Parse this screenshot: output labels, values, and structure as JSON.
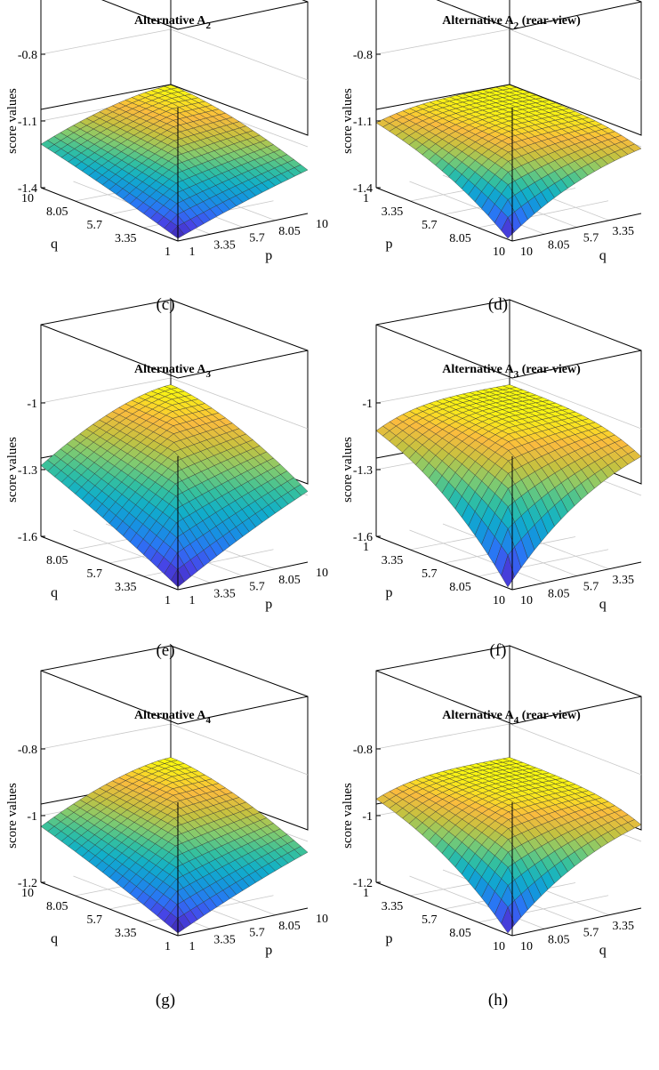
{
  "figure": {
    "captions": [
      "(c)",
      "(d)",
      "(e)",
      "(f)",
      "(g)",
      "(h)"
    ]
  },
  "chart_data": [
    {
      "type": "surface",
      "title": "Alternative A",
      "title_subscript": "2",
      "title_suffix": "",
      "caption": "(c)",
      "view": "front",
      "xlabel": "p",
      "ylabel": "q",
      "zlabel": "score values",
      "x_ticks": [
        "1",
        "3.35",
        "5.7",
        "8.05",
        "10"
      ],
      "y_ticks": [
        "1",
        "3.35",
        "5.7",
        "8.05",
        "10"
      ],
      "z_ticks": [
        "-0.8",
        "-1.1",
        "-1.4"
      ],
      "x_range": [
        1,
        10
      ],
      "y_range": [
        1,
        10
      ],
      "zlim": [
        -1.4,
        -0.8
      ],
      "surface": {
        "corner_max": -1.05,
        "center_min": -1.4
      },
      "colormap": "parula",
      "grid": true
    },
    {
      "type": "surface",
      "title": "Alternative A",
      "title_subscript": "2",
      "title_suffix": " (rear-view)",
      "caption": "(d)",
      "view": "rear",
      "xlabel": "p",
      "ylabel": "q",
      "zlabel": "score values",
      "x_ticks": [
        "1",
        "3.35",
        "5.7",
        "8.05",
        "10"
      ],
      "y_ticks": [
        "10",
        "8.05",
        "5.7",
        "3.35"
      ],
      "z_ticks": [
        "-0.8",
        "-1.1",
        "-1.4"
      ],
      "x_range": [
        1,
        10
      ],
      "y_range": [
        1,
        10
      ],
      "zlim": [
        -1.4,
        -0.8
      ],
      "surface": {
        "corner_max": -1.05,
        "center_min": -1.4
      },
      "colormap": "parula",
      "grid": true
    },
    {
      "type": "surface",
      "title": "Alternative A",
      "title_subscript": "3",
      "title_suffix": "",
      "caption": "(e)",
      "view": "front",
      "xlabel": "p",
      "ylabel": "q",
      "zlabel": "score values",
      "x_ticks": [
        "1",
        "3.35",
        "5.7",
        "8.05",
        "10"
      ],
      "y_ticks": [
        "1",
        "3.35",
        "5.7",
        "8.05"
      ],
      "z_ticks": [
        "-1",
        "-1.3",
        "-1.6"
      ],
      "x_range": [
        1,
        10
      ],
      "y_range": [
        1,
        10
      ],
      "zlim": [
        -1.6,
        -1.0
      ],
      "surface": {
        "corner_max": -1.03,
        "center_min": -1.6
      },
      "colormap": "parula",
      "grid": true
    },
    {
      "type": "surface",
      "title": "Alternative A",
      "title_subscript": "3",
      "title_suffix": " (rear-view)",
      "caption": "(f)",
      "view": "rear",
      "xlabel": "p",
      "ylabel": "q",
      "zlabel": "score values",
      "x_ticks": [
        "1",
        "3.35",
        "5.7",
        "8.05",
        "10"
      ],
      "y_ticks": [
        "10",
        "8.05",
        "5.7",
        "3.35"
      ],
      "z_ticks": [
        "-1",
        "-1.3",
        "-1.6"
      ],
      "x_range": [
        1,
        10
      ],
      "y_range": [
        1,
        10
      ],
      "zlim": [
        -1.6,
        -1.0
      ],
      "surface": {
        "corner_max": -1.03,
        "center_min": -1.6
      },
      "colormap": "parula",
      "grid": true
    },
    {
      "type": "surface",
      "title": "Alternative A",
      "title_subscript": "4",
      "title_suffix": "",
      "caption": "(g)",
      "view": "front",
      "xlabel": "p",
      "ylabel": "q",
      "zlabel": "score values",
      "x_ticks": [
        "1",
        "3.35",
        "5.7",
        "8.05",
        "10"
      ],
      "y_ticks": [
        "1",
        "3.35",
        "5.7",
        "8.05",
        "10"
      ],
      "z_ticks": [
        "-0.8",
        "-1",
        "-1.2"
      ],
      "x_range": [
        1,
        10
      ],
      "y_range": [
        1,
        10
      ],
      "zlim": [
        -1.2,
        -0.8
      ],
      "surface": {
        "corner_max": -0.9,
        "center_min": -1.2
      },
      "colormap": "parula",
      "grid": true
    },
    {
      "type": "surface",
      "title": "Alternative A",
      "title_subscript": "4",
      "title_suffix": " (rear-view)",
      "caption": "(h)",
      "view": "rear",
      "xlabel": "p",
      "ylabel": "q",
      "zlabel": "score values",
      "x_ticks": [
        "1",
        "3.35",
        "5.7",
        "8.05",
        "10"
      ],
      "y_ticks": [
        "10",
        "8.05",
        "5.7",
        "3.35"
      ],
      "z_ticks": [
        "-0.8",
        "-1",
        "-1.2"
      ],
      "x_range": [
        1,
        10
      ],
      "y_range": [
        1,
        10
      ],
      "zlim": [
        -1.2,
        -0.8
      ],
      "surface": {
        "corner_max": -0.9,
        "center_min": -1.2
      },
      "colormap": "parula",
      "grid": true
    }
  ]
}
